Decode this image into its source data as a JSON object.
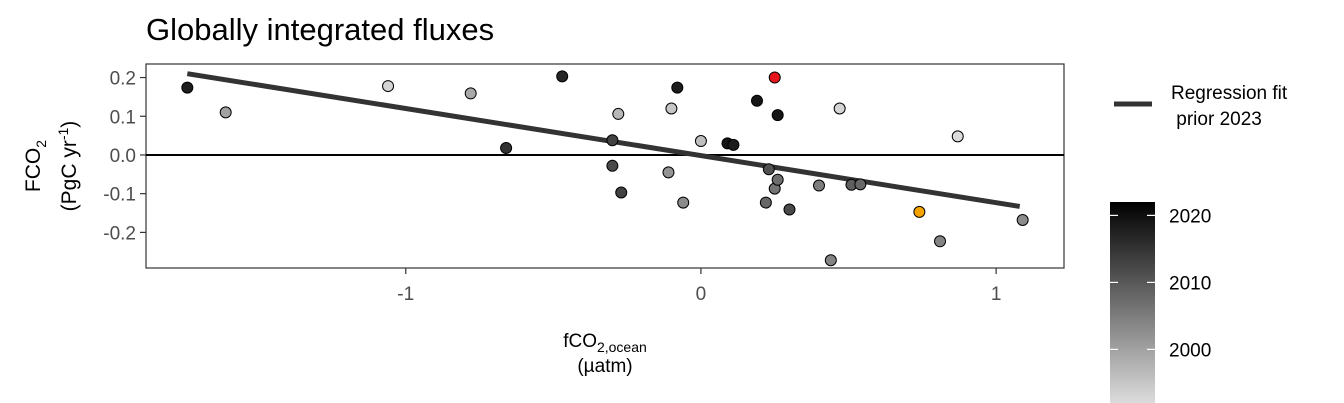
{
  "chart_data": {
    "type": "scatter",
    "title": "Globally integrated fluxes",
    "xlabel": {
      "main": "fCO",
      "sub": "2,ocean",
      "unit": "(µatm)"
    },
    "ylabel": {
      "main": "FCO",
      "sub": "2",
      "unit_open": "(PgC yr",
      "unit_sup": "-1",
      "unit_close": ")"
    },
    "xlim": [
      -1.88,
      1.23
    ],
    "ylim": [
      -0.292,
      0.235
    ],
    "x_ticks": [
      {
        "value": -1,
        "label": "-1"
      },
      {
        "value": 0,
        "label": "0"
      },
      {
        "value": 1,
        "label": "1"
      }
    ],
    "y_ticks": [
      {
        "value": 0.2,
        "label": "0.2"
      },
      {
        "value": 0.1,
        "label": "0.1"
      },
      {
        "value": 0.0,
        "label": "0.0"
      },
      {
        "value": -0.1,
        "label": "-0.1"
      },
      {
        "value": -0.2,
        "label": "-0.2"
      }
    ],
    "zero_line": 0.0,
    "grid": false,
    "points": [
      {
        "x": -1.74,
        "y": 0.174,
        "year": 2018
      },
      {
        "x": -1.61,
        "y": 0.11,
        "year": 2000
      },
      {
        "x": -1.06,
        "y": 0.178,
        "year": 1993
      },
      {
        "x": -0.78,
        "y": 0.159,
        "year": 1999
      },
      {
        "x": -0.66,
        "y": 0.018,
        "year": 2015
      },
      {
        "x": -0.47,
        "y": 0.203,
        "year": 2017
      },
      {
        "x": -0.3,
        "y": 0.038,
        "year": 2013
      },
      {
        "x": -0.3,
        "y": -0.028,
        "year": 2012
      },
      {
        "x": -0.28,
        "y": 0.106,
        "year": 1997
      },
      {
        "x": -0.27,
        "y": -0.097,
        "year": 2013
      },
      {
        "x": -0.11,
        "y": -0.045,
        "year": 2002
      },
      {
        "x": -0.1,
        "y": 0.12,
        "year": 1995
      },
      {
        "x": -0.08,
        "y": 0.174,
        "year": 2018
      },
      {
        "x": -0.06,
        "y": -0.123,
        "year": 2003
      },
      {
        "x": 0.0,
        "y": 0.036,
        "year": 1996
      },
      {
        "x": 0.09,
        "y": 0.03,
        "year": 2019
      },
      {
        "x": 0.11,
        "y": 0.026,
        "year": 2018
      },
      {
        "x": 0.19,
        "y": 0.14,
        "year": 2019
      },
      {
        "x": 0.22,
        "y": -0.123,
        "year": 2008
      },
      {
        "x": 0.23,
        "y": -0.037,
        "year": 2011
      },
      {
        "x": 0.25,
        "y": -0.087,
        "year": 2006
      },
      {
        "x": 0.25,
        "y": 0.2,
        "year": 2022
      },
      {
        "x": 0.26,
        "y": 0.103,
        "year": 2019
      },
      {
        "x": 0.26,
        "y": -0.064,
        "year": 2007
      },
      {
        "x": 0.3,
        "y": -0.141,
        "year": 2012
      },
      {
        "x": 0.4,
        "y": -0.079,
        "year": 2005
      },
      {
        "x": 0.44,
        "y": -0.272,
        "year": 2004
      },
      {
        "x": 0.47,
        "y": 0.12,
        "year": 1993
      },
      {
        "x": 0.51,
        "y": -0.077,
        "year": 2009
      },
      {
        "x": 0.54,
        "y": -0.076,
        "year": 2008
      },
      {
        "x": 0.74,
        "y": -0.147,
        "year": 2023
      },
      {
        "x": 0.81,
        "y": -0.223,
        "year": 2004
      },
      {
        "x": 0.87,
        "y": 0.048,
        "year": 1992
      },
      {
        "x": 1.09,
        "y": -0.168,
        "year": 2003
      }
    ],
    "highlight_colors": {
      "2022": "#e8141c",
      "2023": "#f5a300"
    },
    "regression": {
      "label_line1": "Regression fit",
      "label_line2": " prior 2023",
      "x1": -1.74,
      "y1": 0.21,
      "x2": 1.08,
      "y2": -0.133,
      "color": "#333333"
    },
    "colorbar": {
      "year_min": 1992,
      "year_max": 2022,
      "color_low": "#dcdcdc",
      "color_high": "#000000",
      "ticks": [
        {
          "value": 2000,
          "label": "2000"
        },
        {
          "value": 2010,
          "label": "2010"
        },
        {
          "value": 2020,
          "label": "2020"
        }
      ]
    }
  }
}
